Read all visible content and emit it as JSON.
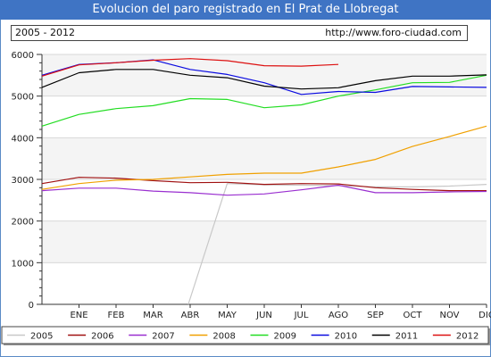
{
  "header": {
    "title": "Evolucion del paro registrado en El Prat de Llobregat",
    "period": "2005 - 2012",
    "url": "http://www.foro-ciudad.com"
  },
  "colors": {
    "title_bg": "#3f74c4",
    "band": "#f4f4f4"
  },
  "chart_data": {
    "type": "line",
    "title": "Evolucion del paro registrado en El Prat de Llobregat",
    "xlabel": "",
    "ylabel": "",
    "categories": [
      "ENE",
      "FEB",
      "MAR",
      "ABR",
      "MAY",
      "JUN",
      "JUL",
      "AGO",
      "SEP",
      "OCT",
      "NOV",
      "DIC"
    ],
    "yticks": [
      0,
      1000,
      2000,
      3000,
      4000,
      5000,
      6000
    ],
    "ylim": [
      0,
      6000
    ],
    "grid": true,
    "legend_position": "bottom",
    "series": [
      {
        "name": "2005",
        "color": "#c8c8c8",
        "points": [
          [
            3.95,
            0
          ],
          [
            5,
            2900
          ],
          [
            6,
            2870
          ],
          [
            7,
            2860
          ],
          [
            8,
            2850
          ],
          [
            9,
            2820
          ],
          [
            10,
            2820
          ],
          [
            11,
            2840
          ],
          [
            12,
            2880
          ]
        ]
      },
      {
        "name": "2006",
        "color": "#a01010",
        "points": [
          [
            0,
            2900
          ],
          [
            1,
            3050
          ],
          [
            2,
            3030
          ],
          [
            3,
            2970
          ],
          [
            4,
            2920
          ],
          [
            5,
            2930
          ],
          [
            6,
            2880
          ],
          [
            7,
            2900
          ],
          [
            8,
            2890
          ],
          [
            9,
            2800
          ],
          [
            10,
            2760
          ],
          [
            11,
            2730
          ],
          [
            12,
            2730
          ]
        ]
      },
      {
        "name": "2007",
        "color": "#9a2fd0",
        "points": [
          [
            0,
            2730
          ],
          [
            1,
            2790
          ],
          [
            2,
            2790
          ],
          [
            3,
            2720
          ],
          [
            4,
            2680
          ],
          [
            5,
            2620
          ],
          [
            6,
            2650
          ],
          [
            7,
            2750
          ],
          [
            8,
            2860
          ],
          [
            9,
            2680
          ],
          [
            10,
            2680
          ],
          [
            11,
            2700
          ],
          [
            12,
            2710
          ]
        ]
      },
      {
        "name": "2008",
        "color": "#f0a000",
        "points": [
          [
            0,
            2760
          ],
          [
            1,
            2900
          ],
          [
            2,
            2980
          ],
          [
            3,
            3000
          ],
          [
            4,
            3060
          ],
          [
            5,
            3120
          ],
          [
            6,
            3150
          ],
          [
            7,
            3150
          ],
          [
            8,
            3300
          ],
          [
            9,
            3480
          ],
          [
            10,
            3790
          ],
          [
            11,
            4030
          ],
          [
            12,
            4280
          ]
        ]
      },
      {
        "name": "2009",
        "color": "#22dd22",
        "points": [
          [
            0,
            4280
          ],
          [
            1,
            4560
          ],
          [
            2,
            4700
          ],
          [
            3,
            4770
          ],
          [
            4,
            4940
          ],
          [
            5,
            4920
          ],
          [
            6,
            4720
          ],
          [
            7,
            4790
          ],
          [
            8,
            5000
          ],
          [
            9,
            5150
          ],
          [
            10,
            5320
          ],
          [
            11,
            5330
          ],
          [
            12,
            5500
          ]
        ]
      },
      {
        "name": "2010",
        "color": "#0a0ae0",
        "points": [
          [
            0,
            5500
          ],
          [
            1,
            5760
          ],
          [
            2,
            5800
          ],
          [
            3,
            5870
          ],
          [
            4,
            5640
          ],
          [
            5,
            5520
          ],
          [
            6,
            5320
          ],
          [
            7,
            5040
          ],
          [
            8,
            5110
          ],
          [
            9,
            5090
          ],
          [
            10,
            5230
          ],
          [
            11,
            5220
          ],
          [
            12,
            5210
          ]
        ]
      },
      {
        "name": "2011",
        "color": "#000000",
        "points": [
          [
            0,
            5210
          ],
          [
            1,
            5560
          ],
          [
            2,
            5640
          ],
          [
            3,
            5640
          ],
          [
            4,
            5500
          ],
          [
            5,
            5440
          ],
          [
            6,
            5240
          ],
          [
            7,
            5170
          ],
          [
            8,
            5200
          ],
          [
            9,
            5370
          ],
          [
            10,
            5480
          ],
          [
            11,
            5480
          ],
          [
            12,
            5510
          ]
        ]
      },
      {
        "name": "2012",
        "color": "#dd1010",
        "points": [
          [
            0,
            5480
          ],
          [
            1,
            5750
          ],
          [
            2,
            5800
          ],
          [
            3,
            5860
          ],
          [
            4,
            5900
          ],
          [
            5,
            5850
          ],
          [
            6,
            5730
          ],
          [
            7,
            5720
          ],
          [
            8,
            5760
          ]
        ]
      }
    ]
  }
}
